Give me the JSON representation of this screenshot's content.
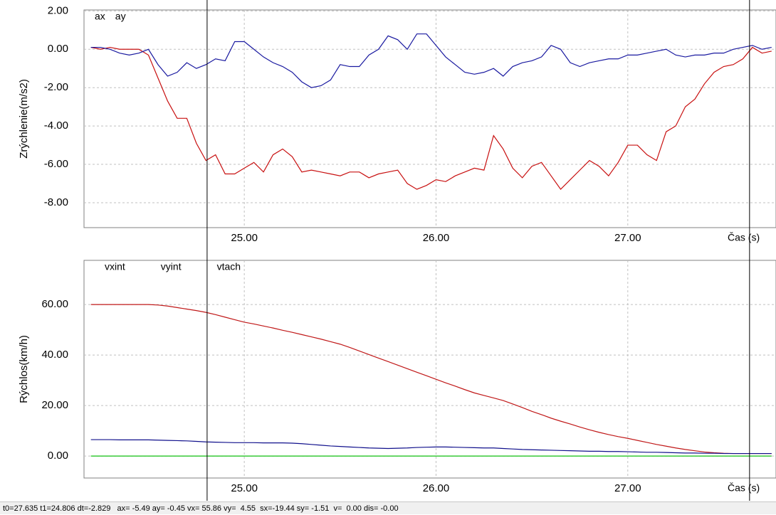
{
  "chart_data": [
    {
      "type": "line",
      "ylabel": "Zrýchlenie(m/s2)",
      "xlabel": "Čas (s)",
      "xlim": [
        24.164,
        27.773
      ],
      "ylim": [
        -9.3,
        2.05
      ],
      "xticks": [
        {
          "value": 25,
          "label": "25.00"
        },
        {
          "value": 26,
          "label": "26.00"
        },
        {
          "value": 27,
          "label": "27.00"
        }
      ],
      "yticks": [
        {
          "value": 2,
          "label": "2.00"
        },
        {
          "value": 0,
          "label": "0.00"
        },
        {
          "value": -2,
          "label": "-2.00"
        },
        {
          "value": -4,
          "label": "-4.00"
        },
        {
          "value": -6,
          "label": "-6.00"
        },
        {
          "value": -8,
          "label": "-8.00"
        }
      ],
      "grid": true,
      "x": [
        24.2,
        24.25,
        24.3,
        24.35,
        24.4,
        24.45,
        24.5,
        24.55,
        24.6,
        24.65,
        24.7,
        24.75,
        24.8,
        24.85,
        24.9,
        24.95,
        25,
        25.05,
        25.1,
        25.15,
        25.2,
        25.25,
        25.3,
        25.35,
        25.4,
        25.45,
        25.5,
        25.55,
        25.6,
        25.65,
        25.7,
        25.75,
        25.8,
        25.85,
        25.9,
        25.95,
        26,
        26.05,
        26.1,
        26.15,
        26.2,
        26.25,
        26.3,
        26.35,
        26.4,
        26.45,
        26.5,
        26.55,
        26.6,
        26.65,
        26.7,
        26.75,
        26.8,
        26.85,
        26.9,
        26.95,
        27,
        27.05,
        27.1,
        27.15,
        27.2,
        27.25,
        27.3,
        27.35,
        27.4,
        27.45,
        27.5,
        27.55,
        27.6,
        27.65,
        27.7,
        27.75
      ],
      "series": [
        {
          "name": "ax",
          "color": "#c81010",
          "values": [
            0.1,
            0,
            0.1,
            0,
            0,
            0,
            -0.3,
            -1.5,
            -2.7,
            -3.6,
            -3.6,
            -4.9,
            -5.8,
            -5.5,
            -6.5,
            -6.5,
            -6.2,
            -5.9,
            -6.4,
            -5.5,
            -5.2,
            -5.6,
            -6.4,
            -6.3,
            -6.4,
            -6.5,
            -6.6,
            -6.4,
            -6.4,
            -6.7,
            -6.5,
            -6.4,
            -6.3,
            -7,
            -7.3,
            -7.1,
            -6.8,
            -6.9,
            -6.6,
            -6.4,
            -6.2,
            -6.3,
            -4.5,
            -5.2,
            -6.2,
            -6.7,
            -6.1,
            -5.9,
            -6.6,
            -7.3,
            -6.8,
            -6.3,
            -5.8,
            -6.1,
            -6.6,
            -5.9,
            -5,
            -5,
            -5.5,
            -5.8,
            -4.3,
            -4,
            -3,
            -2.6,
            -1.8,
            -1.2,
            -0.9,
            -0.8,
            -0.5,
            0.1,
            -0.2,
            -0.1
          ]
        },
        {
          "name": "ay",
          "color": "#1a1aa0",
          "values": [
            0.1,
            0.1,
            0,
            -0.2,
            -0.3,
            -0.2,
            0,
            -0.8,
            -1.4,
            -1.2,
            -0.7,
            -1,
            -0.8,
            -0.5,
            -0.6,
            0.4,
            0.4,
            0,
            -0.4,
            -0.7,
            -0.9,
            -1.2,
            -1.7,
            -2,
            -1.9,
            -1.6,
            -0.8,
            -0.9,
            -0.9,
            -0.3,
            0,
            0.7,
            0.5,
            0,
            0.8,
            0.8,
            0.2,
            -0.4,
            -0.8,
            -1.2,
            -1.3,
            -1.2,
            -1,
            -1.4,
            -0.9,
            -0.7,
            -0.6,
            -0.4,
            0.2,
            0,
            -0.7,
            -0.9,
            -0.7,
            -0.6,
            -0.5,
            -0.5,
            -0.3,
            -0.3,
            -0.2,
            -0.1,
            0,
            -0.3,
            -0.4,
            -0.3,
            -0.3,
            -0.2,
            -0.2,
            0,
            0.1,
            0.2,
            0,
            0.1
          ]
        }
      ]
    },
    {
      "type": "line",
      "ylabel": "Rýchlos(km/h)",
      "xlabel": "Čas (s)",
      "xlim": [
        24.164,
        27.773
      ],
      "ylim": [
        -8.7,
        77.5
      ],
      "xticks": [
        {
          "value": 25,
          "label": "25.00"
        },
        {
          "value": 26,
          "label": "26.00"
        },
        {
          "value": 27,
          "label": "27.00"
        }
      ],
      "yticks": [
        {
          "value": 60,
          "label": "60.00"
        },
        {
          "value": 40,
          "label": "40.00"
        },
        {
          "value": 20,
          "label": "20.00"
        },
        {
          "value": 0,
          "label": "0.00"
        }
      ],
      "grid": true,
      "x": [
        24.2,
        24.25,
        24.3,
        24.35,
        24.4,
        24.45,
        24.5,
        24.55,
        24.6,
        24.65,
        24.7,
        24.75,
        24.8,
        24.85,
        24.9,
        24.95,
        25,
        25.05,
        25.1,
        25.15,
        25.2,
        25.25,
        25.3,
        25.35,
        25.4,
        25.45,
        25.5,
        25.55,
        25.6,
        25.65,
        25.7,
        25.75,
        25.8,
        25.85,
        25.9,
        25.95,
        26,
        26.05,
        26.1,
        26.15,
        26.2,
        26.25,
        26.3,
        26.35,
        26.4,
        26.45,
        26.5,
        26.55,
        26.6,
        26.65,
        26.7,
        26.75,
        26.8,
        26.85,
        26.9,
        26.95,
        27,
        27.05,
        27.1,
        27.15,
        27.2,
        27.25,
        27.3,
        27.35,
        27.4,
        27.45,
        27.5,
        27.55,
        27.6,
        27.65,
        27.7,
        27.75
      ],
      "series": [
        {
          "name": "vxint",
          "color": "#c01818",
          "values": [
            60,
            60,
            60,
            60,
            60,
            60,
            60,
            59.8,
            59.4,
            58.8,
            58.2,
            57.6,
            56.9,
            56,
            55,
            54,
            53,
            52.3,
            51.5,
            50.7,
            49.8,
            49,
            48.1,
            47.2,
            46.3,
            45.3,
            44.3,
            43,
            41.6,
            40.2,
            38.8,
            37.4,
            36,
            34.6,
            33.2,
            31.8,
            30.4,
            29,
            27.7,
            26.3,
            25,
            24,
            23,
            22,
            20.6,
            19.2,
            17.7,
            16.4,
            15,
            13.8,
            12.7,
            11.5,
            10.4,
            9.4,
            8.5,
            7.7,
            7,
            6.2,
            5.4,
            4.6,
            3.9,
            3.2,
            2.6,
            2.1,
            1.6,
            1.3,
            1.1,
            1,
            1,
            1,
            1,
            1
          ]
        },
        {
          "name": "vyint",
          "color": "#10108c",
          "values": [
            6.5,
            6.5,
            6.5,
            6.4,
            6.4,
            6.4,
            6.4,
            6.3,
            6.2,
            6.1,
            6,
            5.8,
            5.6,
            5.5,
            5.4,
            5.3,
            5.3,
            5.3,
            5.2,
            5.2,
            5.2,
            5.1,
            4.9,
            4.6,
            4.3,
            4,
            3.8,
            3.6,
            3.4,
            3.2,
            3.1,
            3,
            3.1,
            3.2,
            3.4,
            3.5,
            3.6,
            3.6,
            3.5,
            3.4,
            3.3,
            3.2,
            3.2,
            3,
            2.8,
            2.6,
            2.5,
            2.4,
            2.3,
            2.2,
            2.1,
            2,
            1.9,
            1.9,
            1.8,
            1.8,
            1.7,
            1.6,
            1.5,
            1.5,
            1.4,
            1.3,
            1.2,
            1.2,
            1.1,
            1.1,
            1,
            1,
            1,
            1,
            1,
            1
          ]
        },
        {
          "name": "vtach",
          "color": "#10c010",
          "values": [
            0,
            0,
            0,
            0,
            0,
            0,
            0,
            0,
            0,
            0,
            0,
            0,
            0,
            0,
            0,
            0,
            0,
            0,
            0,
            0,
            0,
            0,
            0,
            0,
            0,
            0,
            0,
            0,
            0,
            0,
            0,
            0,
            0,
            0,
            0,
            0,
            0,
            0,
            0,
            0,
            0,
            0,
            0,
            0,
            0,
            0,
            0,
            0,
            0,
            0,
            0,
            0,
            0,
            0,
            0,
            0,
            0,
            0,
            0,
            0,
            0,
            0,
            0,
            0,
            0,
            0,
            0,
            0,
            0,
            0,
            0,
            0
          ]
        }
      ]
    }
  ],
  "cursors": [
    24.806,
    27.635
  ],
  "status": "t0=27.635 t1=24.806 dt=-2.829   ax= -5.49 ay= -0.45 vx= 55.86 vy=  4.55  sx=-19.44 sy= -1.51  v=  0.00 dis= -0.00"
}
